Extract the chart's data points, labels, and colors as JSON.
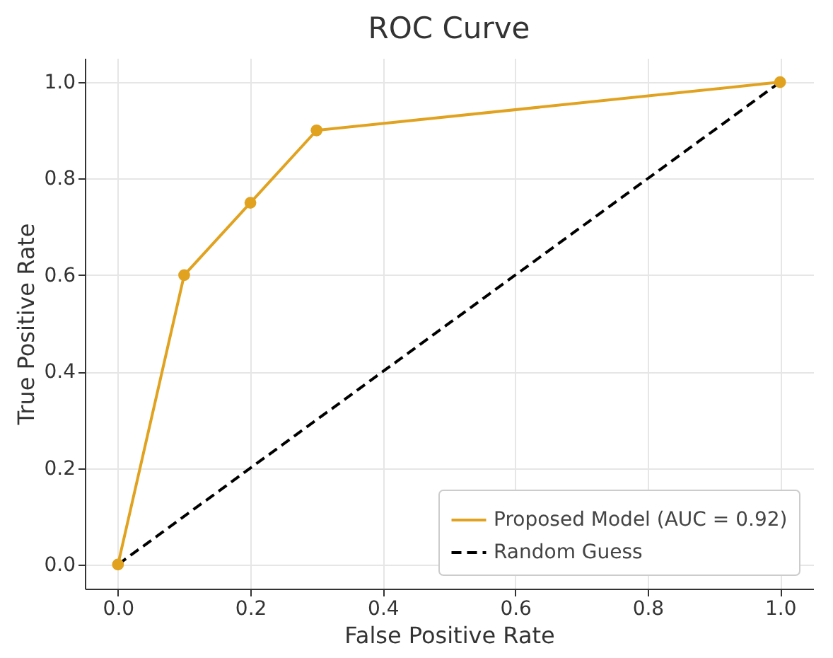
{
  "chart_data": {
    "type": "line",
    "title": "ROC Curve",
    "xlabel": "False Positive Rate",
    "ylabel": "True Positive Rate",
    "series": [
      {
        "name": "Proposed Model (AUC = 0.92)",
        "color": "#e0a21f",
        "x": [
          0,
          0.1,
          0.2,
          0.3,
          1
        ],
        "values": [
          0,
          0.6,
          0.75,
          0.9,
          1
        ],
        "marker": "circle",
        "line_style": "solid"
      },
      {
        "name": "Random Guess",
        "color": "#000000",
        "x": [
          0,
          1
        ],
        "values": [
          0,
          1
        ],
        "marker": "none",
        "line_style": "dashed"
      }
    ],
    "xlim": [
      -0.05,
      1.05
    ],
    "ylim": [
      -0.05,
      1.05
    ],
    "xticks": [
      {
        "value": 0,
        "label": "0.0"
      },
      {
        "value": 0.2,
        "label": "0.2"
      },
      {
        "value": 0.4,
        "label": "0.4"
      },
      {
        "value": 0.6,
        "label": "0.6"
      },
      {
        "value": 0.8,
        "label": "0.8"
      },
      {
        "value": 1,
        "label": "1.0"
      }
    ],
    "yticks": [
      {
        "value": 0,
        "label": "0.0"
      },
      {
        "value": 0.2,
        "label": "0.2"
      },
      {
        "value": 0.4,
        "label": "0.4"
      },
      {
        "value": 0.6,
        "label": "0.6"
      },
      {
        "value": 0.8,
        "label": "0.8"
      },
      {
        "value": 1,
        "label": "1.0"
      }
    ],
    "grid": true,
    "legend": "bottom right"
  }
}
